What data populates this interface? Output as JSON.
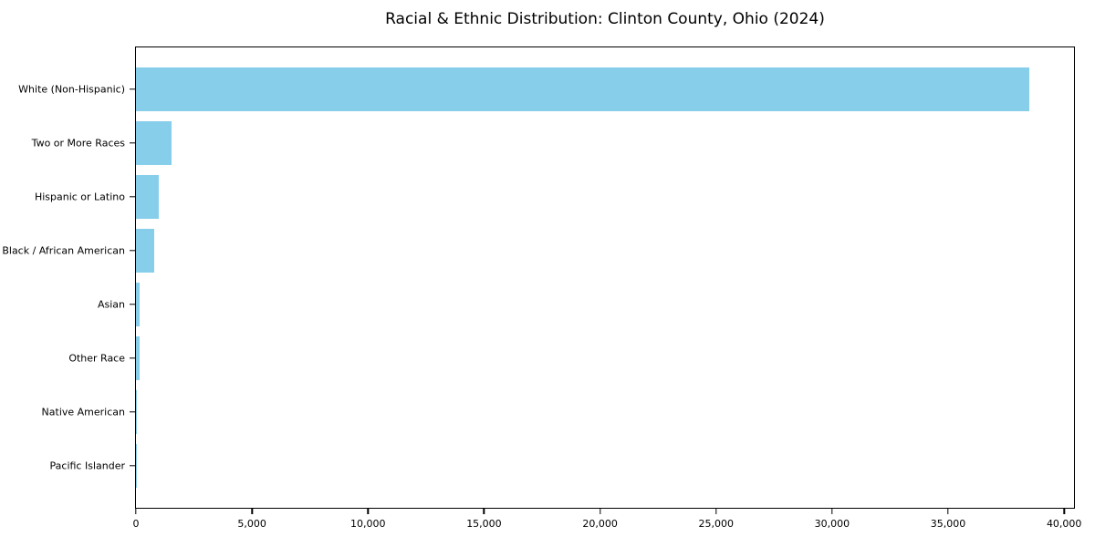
{
  "title": "Racial & Ethnic Distribution: Clinton County, Ohio (2024)",
  "chart_data": {
    "type": "bar",
    "orientation": "horizontal",
    "title": "Racial & Ethnic Distribution: Clinton County, Ohio (2024)",
    "categories": [
      "White (Non-Hispanic)",
      "Two or More Races",
      "Hispanic or Latino",
      "Black / African American",
      "Asian",
      "Other Race",
      "Native American",
      "Pacific Islander"
    ],
    "values": [
      38500,
      1550,
      1000,
      800,
      160,
      150,
      30,
      10
    ],
    "xlabel": "",
    "ylabel": "",
    "xlim": [
      0,
      40425
    ],
    "xticks": [
      0,
      5000,
      10000,
      15000,
      20000,
      25000,
      30000,
      35000,
      40000
    ],
    "xtick_labels": [
      "0",
      "5,000",
      "10,000",
      "15,000",
      "20,000",
      "25,000",
      "30,000",
      "35,000",
      "40,000"
    ],
    "bar_color": "#87CEEB",
    "grid": false,
    "legend": null
  }
}
